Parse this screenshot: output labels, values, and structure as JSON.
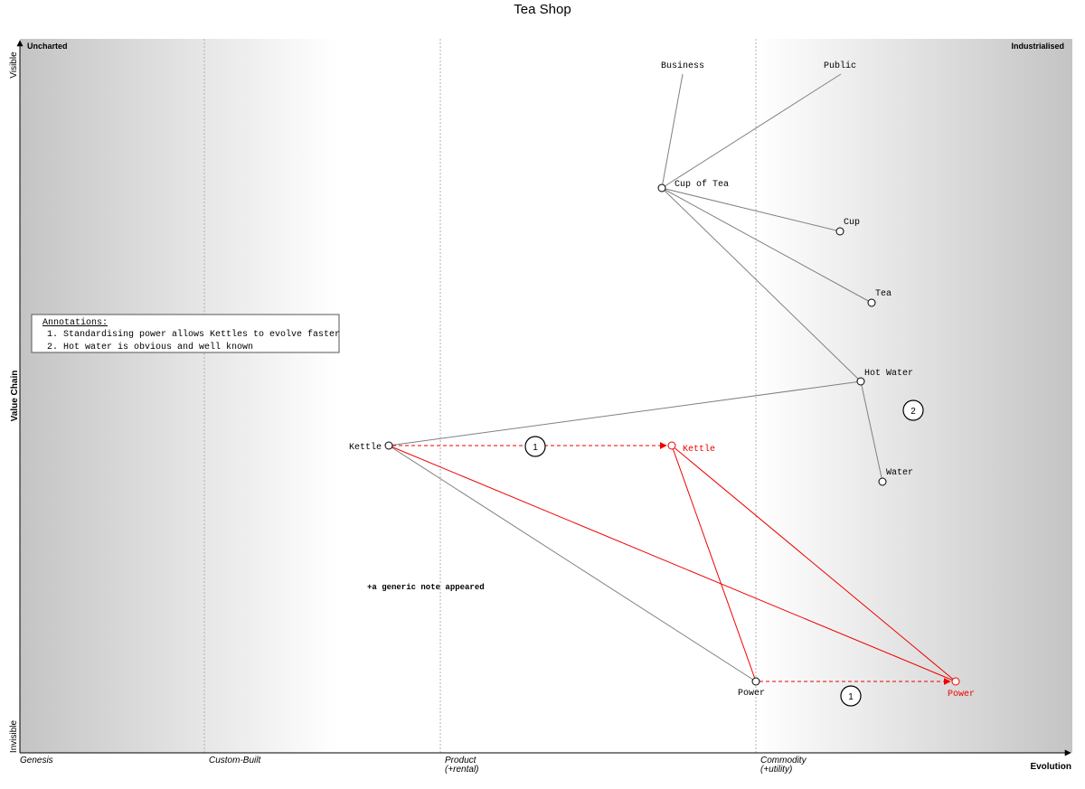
{
  "title": "Tea Shop",
  "axes": {
    "y_label": "Value Chain",
    "y_top": "Visible",
    "y_bottom": "Invisible",
    "x_label": "Evolution",
    "corner_left": "Uncharted",
    "corner_right": "Industrialised"
  },
  "stages": [
    {
      "line1": "Genesis",
      "line2": ""
    },
    {
      "line1": "Custom-Built",
      "line2": ""
    },
    {
      "line1": "Product",
      "line2": "(+rental)"
    },
    {
      "line1": "Commodity",
      "line2": "(+utility)"
    }
  ],
  "components": {
    "business": "Business",
    "public": "Public",
    "cup_of_tea": "Cup of Tea",
    "cup": "Cup",
    "tea": "Tea",
    "hot_water": "Hot Water",
    "water": "Water",
    "kettle": "Kettle",
    "power": "Power",
    "kettle_evolved": "Kettle",
    "power_evolved": "Power"
  },
  "annotations_box": {
    "heading": "Annotations:",
    "items": [
      "1. Standardising power allows Kettles to evolve faster",
      "2. Hot water is obvious and well known"
    ]
  },
  "annotation_markers": {
    "kettle_move": "1",
    "power_move": "1",
    "hot_water": "2"
  },
  "note": "+a generic note appeared",
  "colors": {
    "link": "#808080",
    "evolve": "#ee0000",
    "grid": "#b0b0b0",
    "shade_dark": "#c4c4c4"
  }
}
